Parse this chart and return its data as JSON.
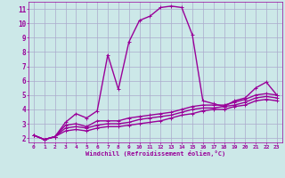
{
  "xlabel": "Windchill (Refroidissement éolien,°C)",
  "bg_color": "#cce8e8",
  "line_color": "#990099",
  "grid_color": "#aaaacc",
  "x_ticks": [
    0,
    1,
    2,
    3,
    4,
    5,
    6,
    7,
    8,
    9,
    10,
    11,
    12,
    13,
    14,
    15,
    16,
    17,
    18,
    19,
    20,
    21,
    22,
    23
  ],
  "y_ticks": [
    2,
    3,
    4,
    5,
    6,
    7,
    8,
    9,
    10,
    11
  ],
  "ylim": [
    1.7,
    11.5
  ],
  "xlim": [
    -0.5,
    23.5
  ],
  "series": [
    [
      2.2,
      1.9,
      2.1,
      3.1,
      3.7,
      3.4,
      3.9,
      7.8,
      5.4,
      8.7,
      10.2,
      10.5,
      11.1,
      11.2,
      11.1,
      9.2,
      4.6,
      4.4,
      4.2,
      4.6,
      4.8,
      5.5,
      5.9,
      5.0
    ],
    [
      2.2,
      1.9,
      2.1,
      2.9,
      3.0,
      2.8,
      3.2,
      3.2,
      3.2,
      3.4,
      3.5,
      3.6,
      3.7,
      3.8,
      4.0,
      4.2,
      4.3,
      4.3,
      4.3,
      4.5,
      4.7,
      5.0,
      5.1,
      5.0
    ],
    [
      2.2,
      1.9,
      2.1,
      2.7,
      2.8,
      2.7,
      2.9,
      3.0,
      3.0,
      3.1,
      3.3,
      3.4,
      3.5,
      3.6,
      3.8,
      4.0,
      4.1,
      4.1,
      4.2,
      4.3,
      4.5,
      4.8,
      4.9,
      4.8
    ],
    [
      2.2,
      1.9,
      2.1,
      2.5,
      2.6,
      2.5,
      2.7,
      2.8,
      2.8,
      2.9,
      3.0,
      3.1,
      3.2,
      3.4,
      3.6,
      3.7,
      3.9,
      4.0,
      4.0,
      4.2,
      4.3,
      4.6,
      4.7,
      4.6
    ]
  ]
}
